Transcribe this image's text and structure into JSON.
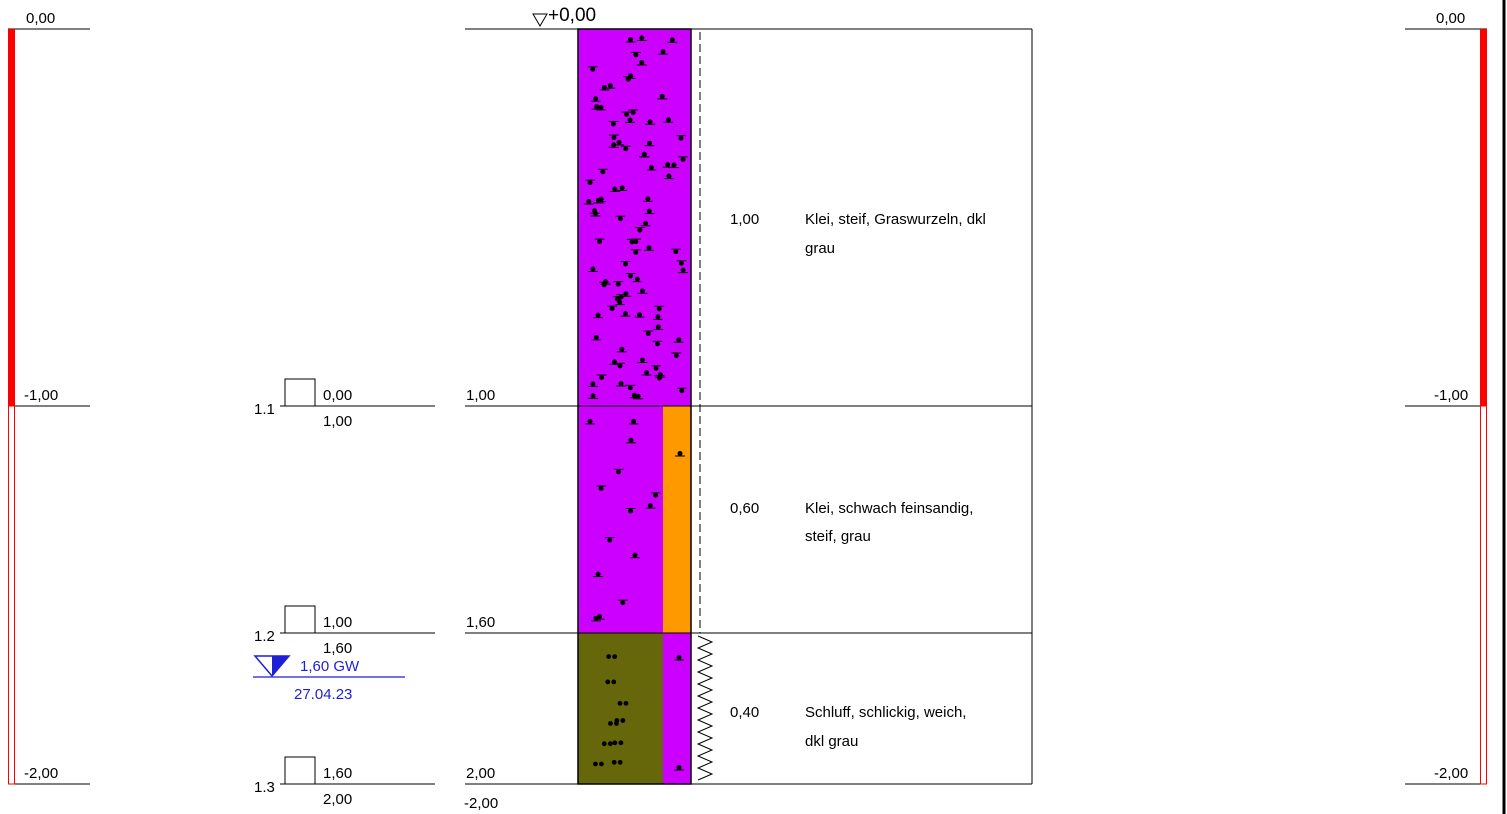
{
  "surface_label": "+0,00",
  "depth_scale": {
    "left_ticks": [
      "0,00",
      "-1,00",
      "-2,00"
    ],
    "right_ticks": [
      "0,00",
      "-1,00",
      "-2,00"
    ],
    "cased_to_depth": 1.0,
    "total_depth": 2.0,
    "bar_color": "#ff0000"
  },
  "samples": [
    {
      "id": "1.1",
      "top": "0,00",
      "bottom": "1,00"
    },
    {
      "id": "1.2",
      "top": "1,00",
      "bottom": "1,60"
    },
    {
      "id": "1.3",
      "top": "1,60",
      "bottom": "2,00"
    }
  ],
  "groundwater": {
    "depth": "1,60 GW",
    "date": "27.04.23",
    "color": "#1f1fd6"
  },
  "layer_bottoms": [
    "1,00",
    "1,60",
    "2,00"
  ],
  "final_depth": "-2,00",
  "layers": [
    {
      "from": 0.0,
      "to": 1.0,
      "thickness": "1,00",
      "description": [
        "Klei, steif, Graswurzeln, dkl",
        "grau"
      ],
      "main_color": "#cc00ff",
      "side_color": "#cc00ff",
      "consistency": "steif"
    },
    {
      "from": 1.0,
      "to": 1.6,
      "thickness": "0,60",
      "description": [
        "Klei, schwach feinsandig,",
        "steif, grau"
      ],
      "main_color": "#cc00ff",
      "side_color": "#ff9900",
      "consistency": "steif"
    },
    {
      "from": 1.6,
      "to": 2.0,
      "thickness": "0,40",
      "description": [
        "Schluff, schlickig, weich,",
        "dkl grau"
      ],
      "main_color": "#66660a",
      "side_color": "#cc00ff",
      "consistency": "weich"
    }
  ]
}
